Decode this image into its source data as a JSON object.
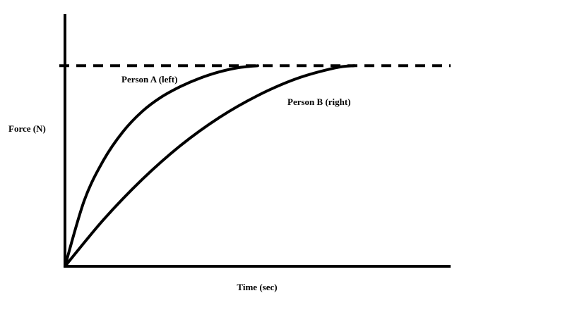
{
  "chart_data": {
    "type": "line",
    "xlabel": "Time (sec)",
    "ylabel": "Force (N)",
    "xlim": [
      0,
      1
    ],
    "ylim": [
      0,
      1
    ],
    "grid": false,
    "legend": "none",
    "reference_line": {
      "y": 0.8,
      "style": "dashed"
    },
    "series": [
      {
        "name": "Person A (left)",
        "x": [
          0,
          0.05,
          0.1,
          0.15,
          0.2,
          0.25,
          0.3,
          0.35,
          0.4,
          0.45,
          0.5
        ],
        "y": [
          0,
          0.262,
          0.423,
          0.536,
          0.617,
          0.675,
          0.717,
          0.75,
          0.775,
          0.792,
          0.8
        ]
      },
      {
        "name": "Person B (right)",
        "x": [
          0,
          0.1,
          0.2,
          0.3,
          0.4,
          0.5,
          0.6,
          0.7,
          0.75
        ],
        "y": [
          0,
          0.186,
          0.346,
          0.482,
          0.593,
          0.681,
          0.748,
          0.791,
          0.8
        ]
      }
    ],
    "annotations": [
      {
        "text": "Person A (left)",
        "series": 0
      },
      {
        "text": "Person B (right)",
        "series": 1
      }
    ],
    "colors": {
      "line": "#000000",
      "background": "#ffffff"
    }
  }
}
